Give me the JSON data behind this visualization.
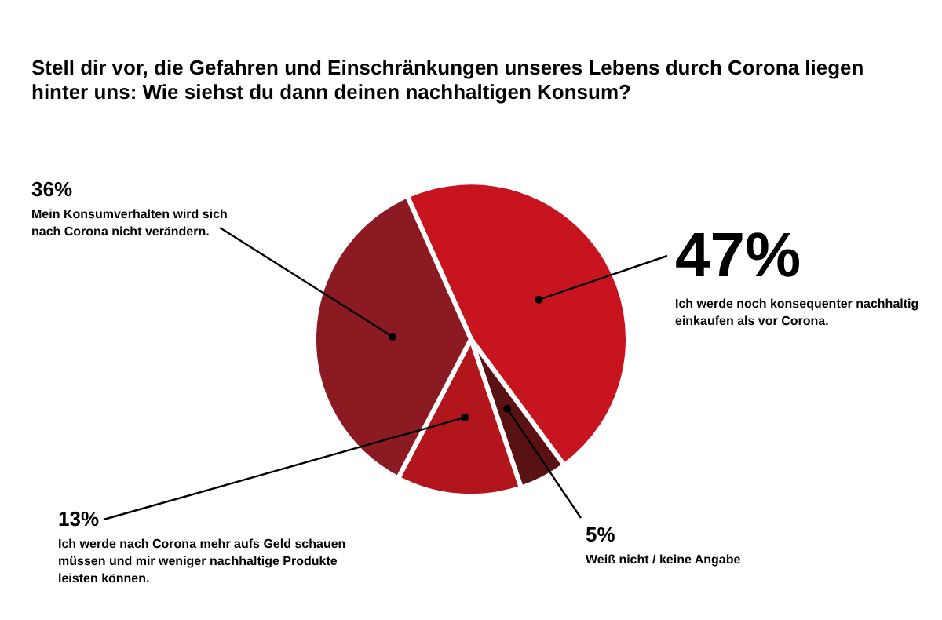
{
  "chart_data": {
    "type": "pie",
    "title": [
      "Stell dir vor, die Gefahren und Einschränkungen unseres Lebens durch Corona liegen",
      "hinter uns: Wie siehst du dann deinen nachhaltigen Konsum?"
    ],
    "categories": [
      "Ich werde noch konsequenter nachhaltig einkaufen als vor Corona.",
      "Weiß nicht / keine Angabe",
      "Ich werde nach Corona mehr aufs Geld schauen müssen und mir weniger nachhaltige Produkte leisten können.",
      "Mein Konsumverhalten wird sich nach Corona nicht verändern."
    ],
    "values": [
      47,
      5,
      13,
      36
    ],
    "value_labels": [
      "47%",
      "5%",
      "13%",
      "36%"
    ],
    "colors": [
      "#c8141f",
      "#5a1114",
      "#b3151d",
      "#8c1a22"
    ]
  }
}
